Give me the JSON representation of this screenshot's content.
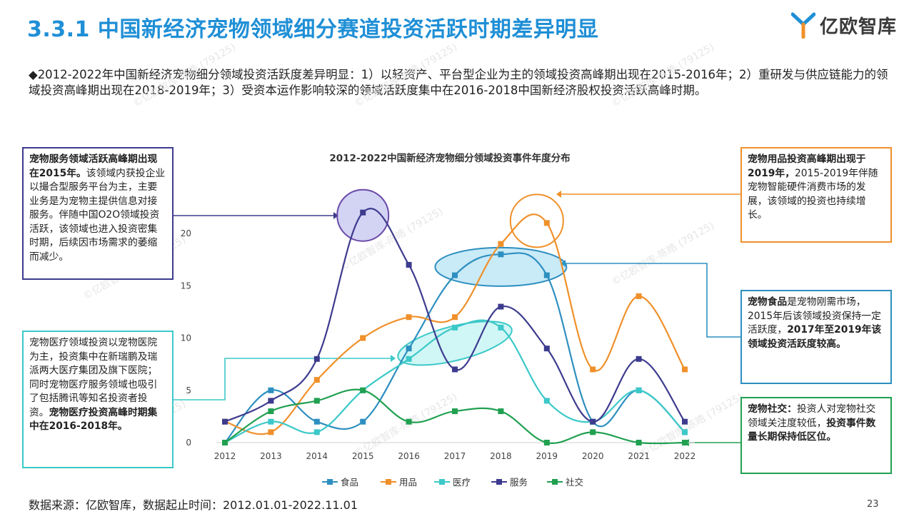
{
  "title": "3.3.1 中国新经济宠物领域细分赛道投资活跃时期差异明显",
  "logo_text": "亿欧智库",
  "intro": "◆2012-2022年中国新经济宠物细分领域投资活跃度差异明显：1）以轻资产、平台型企业为主的领域投资高峰期出现在2015-2016年；2）重研发与供应链能力的领域投资高峰期出现在2018-2019年；3）受资本运作影响较深的领域活跃度集中在2016-2018中国新经济股权投资活跃高峰时期。",
  "boxes": {
    "service": {
      "bold": "宠物服务领域活跃高峰期出现在2015年。",
      "text": "该领域内获投企业以撮合型服务平台为主，主要业务是为宠物主提供信息对接服务。伴随中国O2O领域投资活跃，该领域也进入投资密集时期，后续因市场需求的萎缩而减少。"
    },
    "medical": {
      "text": "宠物医疗领域投资以宠物医院为主，投资集中在新瑞鹏及瑞派两大医疗集团及旗下医院；同时宠物医疗服务领域也吸引了包括腾讯等知名投资者投资。",
      "bold": "宠物医疗投资高峰时期集中在2016-2018年。"
    },
    "goods": {
      "bold": "宠物用品投资高峰期出现于2019年，",
      "text": "2015-2019年伴随宠物智能硬件消费市场的发展，该领域的投资也持续增长。"
    },
    "food": {
      "bold1": "宠物食品",
      "text": "是宠物刚需市场，2015年后该领域投资保持一定活跃度，",
      "bold2": "2017年至2019年该领域投资活跃度较高。"
    },
    "social": {
      "bold1": "宠物社交：",
      "text": "投资人对宠物社交领域关注度较低，",
      "bold2": "投资事件数量长期保持低区位。"
    }
  },
  "source": "数据来源：亿欧智库，数据起止时间：2012.01.01-2022.11.01",
  "page_number": "23",
  "watermark": "©亿欧智库-陈皓 (79125)",
  "chart_data": {
    "type": "line",
    "title": "2012-2022中国新经济宠物细分领域投资事件年度分布",
    "x": [
      "2012",
      "2013",
      "2014",
      "2015",
      "2016",
      "2017",
      "2018",
      "2019",
      "2020",
      "2021",
      "2022"
    ],
    "ylim": [
      0,
      20
    ],
    "yticks": [
      0,
      5,
      10,
      15,
      20
    ],
    "grid": false,
    "legend_position": "bottom",
    "series": [
      {
        "name": "食品",
        "color": "#2d8fc0",
        "values": [
          0,
          5,
          2,
          2,
          9,
          16,
          18,
          16,
          2,
          5,
          1
        ]
      },
      {
        "name": "用品",
        "color": "#f0902a",
        "values": [
          2,
          1,
          6,
          10,
          12,
          12,
          19,
          21,
          7,
          14,
          7
        ]
      },
      {
        "name": "医疗",
        "color": "#3cc8c8",
        "values": [
          0,
          2,
          1,
          5,
          8,
          11,
          11,
          4,
          2,
          5,
          1
        ]
      },
      {
        "name": "服务",
        "color": "#3d3b8e",
        "values": [
          2,
          4,
          8,
          22,
          17,
          7,
          13,
          9,
          2,
          8,
          2
        ]
      },
      {
        "name": "社交",
        "color": "#20a050",
        "values": [
          0,
          3,
          4,
          5,
          2,
          3,
          3,
          0,
          1,
          0,
          0
        ]
      }
    ]
  }
}
